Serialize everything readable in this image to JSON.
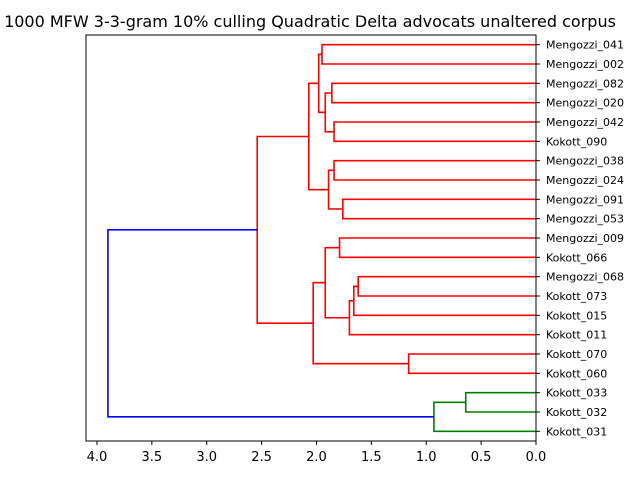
{
  "chart_data": {
    "type": "dendrogram",
    "orientation": "left",
    "title": "1000 MFW 3-3-gram 10% culling Quadratic Delta advocats unaltered corpus",
    "xlim": [
      4.1,
      0.0
    ],
    "xticks": [
      4.0,
      3.5,
      3.0,
      2.5,
      2.0,
      1.5,
      1.0,
      0.5,
      0.0
    ],
    "xtick_labels": [
      "4.0",
      "3.5",
      "3.0",
      "2.5",
      "2.0",
      "1.5",
      "1.0",
      "0.5",
      "0.0"
    ],
    "colors": {
      "red": "#ff0000",
      "blue": "#0000ff",
      "green": "#008000"
    },
    "leaves": [
      "Mengozzi_041",
      "Mengozzi_002",
      "Mengozzi_082",
      "Mengozzi_020",
      "Mengozzi_042",
      "Kokott_090",
      "Mengozzi_038",
      "Mengozzi_024",
      "Mengozzi_091",
      "Mengozzi_053",
      "Mengozzi_009",
      "Kokott_066",
      "Mengozzi_068",
      "Kokott_073",
      "Kokott_015",
      "Kokott_011",
      "Kokott_070",
      "Kokott_060",
      "Kokott_033",
      "Kokott_032",
      "Kokott_031"
    ],
    "merges": [
      {
        "id": "n1",
        "a": "L0",
        "b": "L1",
        "height": 1.95,
        "color": "red"
      },
      {
        "id": "n2",
        "a": "L2",
        "b": "L3",
        "height": 1.86,
        "color": "red"
      },
      {
        "id": "n3",
        "a": "L4",
        "b": "L5",
        "height": 1.84,
        "color": "red"
      },
      {
        "id": "n4",
        "a": "n2",
        "b": "n3",
        "height": 1.92,
        "color": "red"
      },
      {
        "id": "n5",
        "a": "n1",
        "b": "n4",
        "height": 1.98,
        "color": "red"
      },
      {
        "id": "n6",
        "a": "L6",
        "b": "L7",
        "height": 1.84,
        "color": "red"
      },
      {
        "id": "n7",
        "a": "L8",
        "b": "L9",
        "height": 1.76,
        "color": "red"
      },
      {
        "id": "n8",
        "a": "n6",
        "b": "n7",
        "height": 1.89,
        "color": "red"
      },
      {
        "id": "n9",
        "a": "n5",
        "b": "n8",
        "height": 2.07,
        "color": "red"
      },
      {
        "id": "n10",
        "a": "L10",
        "b": "L11",
        "height": 1.79,
        "color": "red"
      },
      {
        "id": "n11",
        "a": "L12",
        "b": "L13",
        "height": 1.62,
        "color": "red"
      },
      {
        "id": "n12",
        "a": "n11",
        "b": "L14",
        "height": 1.66,
        "color": "red"
      },
      {
        "id": "n13",
        "a": "n12",
        "b": "L15",
        "height": 1.7,
        "color": "red"
      },
      {
        "id": "n14",
        "a": "n10",
        "b": "n13",
        "height": 1.92,
        "color": "red"
      },
      {
        "id": "n15",
        "a": "L16",
        "b": "L17",
        "height": 1.16,
        "color": "red"
      },
      {
        "id": "n16",
        "a": "n14",
        "b": "n15",
        "height": 2.03,
        "color": "red"
      },
      {
        "id": "n17",
        "a": "n9",
        "b": "n16",
        "height": 2.54,
        "color": "red"
      },
      {
        "id": "n18",
        "a": "L18",
        "b": "L19",
        "height": 0.64,
        "color": "green"
      },
      {
        "id": "n19",
        "a": "n18",
        "b": "L20",
        "height": 0.93,
        "color": "green"
      },
      {
        "id": "n20",
        "a": "n17",
        "b": "n19",
        "height": 3.9,
        "color": "blue"
      }
    ]
  }
}
